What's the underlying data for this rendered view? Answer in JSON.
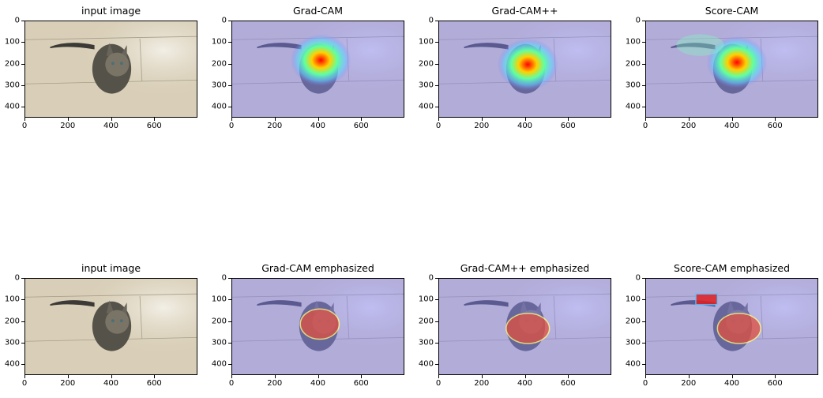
{
  "chart_data": [
    {
      "type": "image",
      "title": "input image",
      "overlay": "none",
      "xticks": [
        "0",
        "200",
        "400",
        "600"
      ],
      "yticks": [
        "0",
        "100",
        "200",
        "300",
        "400"
      ],
      "xlim": [
        0,
        800
      ],
      "ylim": [
        450,
        0
      ]
    },
    {
      "type": "image",
      "title": "Grad-CAM",
      "overlay": "heatmap",
      "xticks": [
        "0",
        "200",
        "400",
        "600"
      ],
      "yticks": [
        "0",
        "100",
        "200",
        "300",
        "400"
      ],
      "xlim": [
        0,
        800
      ],
      "ylim": [
        450,
        0
      ]
    },
    {
      "type": "image",
      "title": "Grad-CAM++",
      "overlay": "heatmap",
      "xticks": [
        "0",
        "200",
        "400",
        "600"
      ],
      "yticks": [
        "0",
        "100",
        "200",
        "300",
        "400"
      ],
      "xlim": [
        0,
        800
      ],
      "ylim": [
        450,
        0
      ]
    },
    {
      "type": "image",
      "title": "Score-CAM",
      "overlay": "heatmap",
      "xticks": [
        "0",
        "200",
        "400",
        "600"
      ],
      "yticks": [
        "0",
        "100",
        "200",
        "300",
        "400"
      ],
      "xlim": [
        0,
        800
      ],
      "ylim": [
        450,
        0
      ]
    },
    {
      "type": "image",
      "title": "input image",
      "overlay": "none",
      "xticks": [
        "0",
        "200",
        "400",
        "600"
      ],
      "yticks": [
        "0",
        "100",
        "200",
        "300",
        "400"
      ],
      "xlim": [
        0,
        800
      ],
      "ylim": [
        450,
        0
      ]
    },
    {
      "type": "image",
      "title": "Grad-CAM emphasized",
      "overlay": "emphasized",
      "xticks": [
        "0",
        "200",
        "400",
        "600"
      ],
      "yticks": [
        "0",
        "100",
        "200",
        "300",
        "400"
      ],
      "xlim": [
        0,
        800
      ],
      "ylim": [
        450,
        0
      ]
    },
    {
      "type": "image",
      "title": "Grad-CAM++ emphasized",
      "overlay": "emphasized",
      "xticks": [
        "0",
        "200",
        "400",
        "600"
      ],
      "yticks": [
        "0",
        "100",
        "200",
        "300",
        "400"
      ],
      "xlim": [
        0,
        800
      ],
      "ylim": [
        450,
        0
      ]
    },
    {
      "type": "image",
      "title": "Score-CAM emphasized",
      "overlay": "emphasized",
      "xticks": [
        "0",
        "200",
        "400",
        "600"
      ],
      "yticks": [
        "0",
        "100",
        "200",
        "300",
        "400"
      ],
      "xlim": [
        0,
        800
      ],
      "ylim": [
        450,
        0
      ]
    }
  ],
  "colors": {
    "floor": "#d8cdb5",
    "tint": "#8080ff",
    "hot": "#ff2000"
  }
}
